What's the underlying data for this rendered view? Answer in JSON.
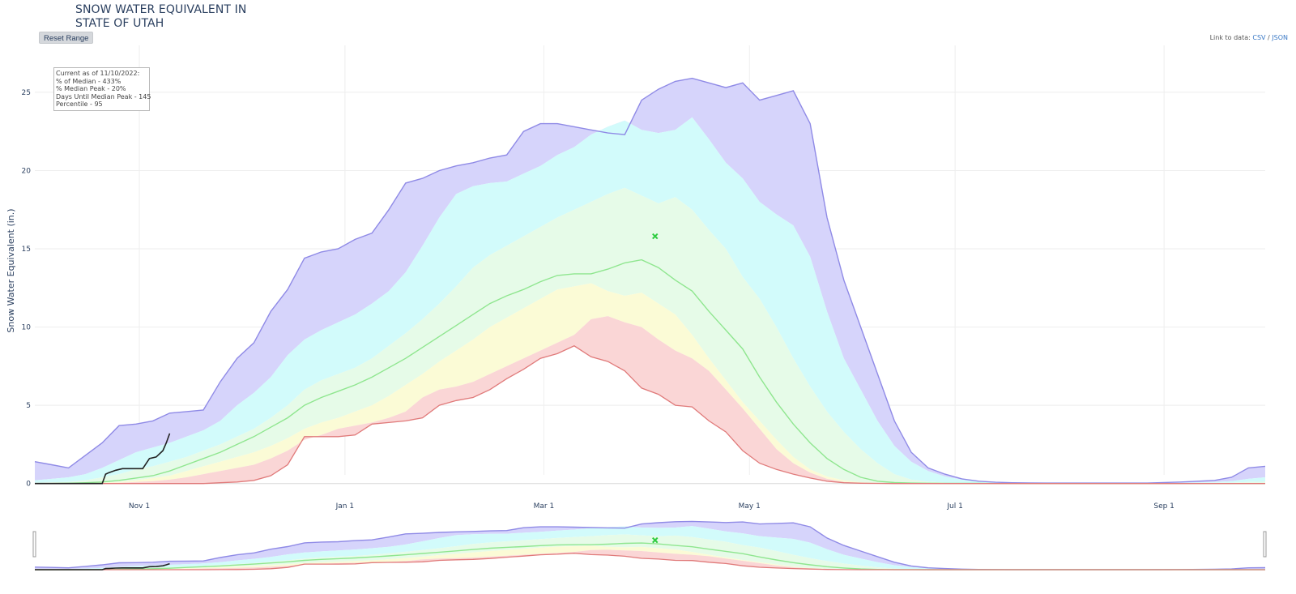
{
  "title": {
    "line1": "SNOW WATER EQUIVALENT IN",
    "line2": "STATE OF UTAH"
  },
  "toolbar": {
    "reset_label": "Reset Range"
  },
  "data_link": {
    "prefix": "Link to data: ",
    "csv": "CSV",
    "separator": " / ",
    "json": "JSON"
  },
  "info_box": {
    "line1": "Current as of 11/10/2022:",
    "line2": "% of Median - 433%",
    "line3": "% Median Peak - 20%",
    "line4": "Days Until Median Peak - 145",
    "line5": "Percentile - 95"
  },
  "colors": {
    "max_fill": "#d6d4fb",
    "max_line": "#8f8ae6",
    "p90_fill": "#d2fbfb",
    "p70_fill": "#e6fbe8",
    "p30_fill": "#fbfbd6",
    "p10_fill": "#fad6d6",
    "median_line": "#8fe68f",
    "min_line": "#e07a7a",
    "current_line": "#222222",
    "peak_marker": "#2ecc40"
  },
  "chart_data": {
    "type": "area",
    "ylabel": "Snow Water Equivalent (in.)",
    "ylim": [
      -1,
      28
    ],
    "yticks": [
      0,
      5,
      10,
      15,
      20,
      25
    ],
    "xrange_days": [
      0,
      365
    ],
    "xticks": [
      {
        "label": "Nov 1",
        "day": 31
      },
      {
        "label": "Jan 1",
        "day": 92
      },
      {
        "label": "Mar 1",
        "day": 151
      },
      {
        "label": "May 1",
        "day": 212
      },
      {
        "label": "Jul 1",
        "day": 273
      },
      {
        "label": "Sep 1",
        "day": 335
      }
    ],
    "x": [
      0,
      5,
      10,
      15,
      20,
      25,
      30,
      35,
      40,
      45,
      50,
      55,
      60,
      65,
      70,
      75,
      80,
      85,
      90,
      95,
      100,
      105,
      110,
      115,
      120,
      125,
      130,
      135,
      140,
      145,
      150,
      155,
      160,
      165,
      170,
      175,
      180,
      185,
      190,
      195,
      200,
      205,
      210,
      215,
      220,
      225,
      230,
      235,
      240,
      245,
      250,
      255,
      260,
      265,
      270,
      275,
      280,
      285,
      290,
      300,
      310,
      320,
      330,
      340,
      350,
      355,
      360,
      365
    ],
    "series": [
      {
        "name": "Max",
        "values": [
          1.4,
          1.2,
          1.0,
          1.8,
          2.6,
          3.7,
          3.8,
          4.0,
          4.5,
          4.6,
          4.7,
          6.5,
          8.0,
          9.0,
          11.0,
          12.4,
          14.4,
          14.8,
          15.0,
          15.6,
          16.0,
          17.5,
          19.2,
          19.5,
          20.0,
          20.3,
          20.5,
          20.8,
          21.0,
          22.5,
          23.0,
          23.0,
          22.8,
          22.6,
          22.4,
          22.3,
          24.5,
          25.2,
          25.7,
          25.9,
          25.6,
          25.3,
          25.6,
          24.5,
          24.8,
          25.1,
          23.0,
          17.0,
          13.0,
          10.0,
          7.0,
          4.0,
          2.0,
          1.0,
          0.6,
          0.3,
          0.15,
          0.08,
          0.05,
          0.03,
          0.03,
          0.03,
          0.03,
          0.1,
          0.2,
          0.4,
          1.0,
          1.1
        ]
      },
      {
        "name": "90%",
        "values": [
          0.2,
          0.3,
          0.4,
          0.6,
          1.0,
          1.5,
          2.0,
          2.3,
          2.6,
          3.0,
          3.4,
          4.0,
          5.0,
          5.8,
          6.8,
          8.2,
          9.2,
          9.8,
          10.3,
          10.8,
          11.5,
          12.3,
          13.5,
          15.2,
          17.0,
          18.5,
          19.0,
          19.2,
          19.3,
          19.8,
          20.3,
          21.0,
          21.5,
          22.3,
          22.8,
          23.2,
          22.6,
          22.4,
          22.6,
          23.4,
          22.0,
          20.5,
          19.5,
          18.0,
          17.2,
          16.5,
          14.5,
          11.0,
          8.0,
          6.0,
          4.0,
          2.4,
          1.4,
          0.8,
          0.45,
          0.25,
          0.12,
          0.06,
          0.04,
          0.03,
          0.03,
          0.03,
          0.03,
          0.05,
          0.1,
          0.15,
          0.3,
          0.4
        ]
      },
      {
        "name": "70%",
        "values": [
          0.05,
          0.08,
          0.1,
          0.2,
          0.4,
          0.6,
          0.9,
          1.1,
          1.4,
          1.7,
          2.1,
          2.5,
          3.0,
          3.5,
          4.2,
          5.0,
          6.0,
          6.6,
          7.0,
          7.4,
          8.0,
          8.8,
          9.6,
          10.5,
          11.5,
          12.6,
          13.8,
          14.6,
          15.2,
          15.8,
          16.4,
          17.0,
          17.5,
          18.0,
          18.5,
          18.9,
          18.4,
          17.9,
          18.3,
          17.5,
          16.2,
          15.0,
          13.2,
          11.8,
          10.0,
          8.0,
          6.2,
          4.6,
          3.3,
          2.2,
          1.3,
          0.6,
          0.25,
          0.12,
          0.06,
          0.04,
          0.03,
          0.02,
          0.02,
          0.02,
          0.02,
          0.02,
          0.02,
          0.03,
          0.05,
          0.06,
          0.1,
          0.12
        ]
      },
      {
        "name": "Median",
        "values": [
          0.0,
          0.0,
          0.02,
          0.05,
          0.1,
          0.2,
          0.35,
          0.5,
          0.8,
          1.2,
          1.6,
          2.0,
          2.5,
          3.0,
          3.6,
          4.2,
          5.0,
          5.5,
          5.9,
          6.3,
          6.8,
          7.4,
          8.0,
          8.7,
          9.4,
          10.1,
          10.8,
          11.5,
          12.0,
          12.4,
          12.9,
          13.3,
          13.4,
          13.4,
          13.7,
          14.1,
          14.3,
          13.8,
          13.0,
          12.3,
          11.0,
          9.8,
          8.6,
          6.8,
          5.2,
          3.8,
          2.6,
          1.6,
          0.9,
          0.4,
          0.15,
          0.06,
          0.03,
          0.02,
          0.01,
          0.01,
          0.01,
          0.0,
          0.0,
          0.0,
          0.0,
          0.0,
          0.0,
          0.0,
          0.0,
          0.0,
          0.0,
          0.0
        ]
      },
      {
        "name": "30%",
        "values": [
          0.0,
          0.0,
          0.01,
          0.03,
          0.06,
          0.1,
          0.2,
          0.35,
          0.5,
          0.8,
          1.1,
          1.4,
          1.7,
          2.0,
          2.4,
          2.9,
          3.5,
          3.9,
          4.2,
          4.6,
          5.0,
          5.6,
          6.3,
          7.0,
          7.8,
          8.5,
          9.2,
          10.0,
          10.6,
          11.2,
          11.8,
          12.4,
          12.6,
          12.8,
          12.3,
          12.0,
          12.2,
          11.5,
          10.8,
          9.5,
          8.0,
          6.6,
          5.2,
          4.0,
          2.8,
          1.7,
          0.9,
          0.45,
          0.2,
          0.08,
          0.04,
          0.02,
          0.01,
          0.0,
          0.0,
          0.0,
          0.0,
          0.0,
          0.0,
          0.0,
          0.0,
          0.0,
          0.0,
          0.0,
          0.0,
          0.0,
          0.0,
          0.0
        ]
      },
      {
        "name": "10%",
        "values": [
          0.0,
          0.0,
          0.0,
          0.01,
          0.02,
          0.05,
          0.1,
          0.15,
          0.25,
          0.4,
          0.6,
          0.8,
          1.0,
          1.2,
          1.6,
          2.1,
          2.8,
          3.1,
          3.5,
          3.7,
          3.9,
          4.2,
          4.6,
          5.5,
          6.0,
          6.2,
          6.5,
          7.0,
          7.5,
          8.0,
          8.5,
          9.0,
          9.5,
          10.5,
          10.7,
          10.3,
          10.0,
          9.2,
          8.5,
          8.0,
          7.2,
          6.0,
          4.8,
          3.5,
          2.2,
          1.3,
          0.7,
          0.3,
          0.1,
          0.04,
          0.02,
          0.01,
          0.0,
          0.0,
          0.0,
          0.0,
          0.0,
          0.0,
          0.0,
          0.0,
          0.0,
          0.0,
          0.0,
          0.0,
          0.0,
          0.0,
          0.0,
          0.0
        ]
      },
      {
        "name": "Min",
        "values": [
          0.0,
          0.0,
          0.0,
          0.0,
          0.0,
          0.0,
          0.0,
          0.0,
          0.0,
          0.0,
          0.0,
          0.05,
          0.1,
          0.2,
          0.5,
          1.2,
          3.0,
          3.0,
          3.0,
          3.1,
          3.8,
          3.9,
          4.0,
          4.2,
          5.0,
          5.3,
          5.5,
          6.0,
          6.7,
          7.3,
          8.0,
          8.3,
          8.8,
          8.1,
          7.8,
          7.2,
          6.1,
          5.7,
          5.0,
          4.9,
          4.0,
          3.3,
          2.1,
          1.3,
          0.9,
          0.6,
          0.35,
          0.15,
          0.05,
          0.02,
          0.01,
          0.0,
          0.0,
          0.0,
          0.0,
          0.0,
          0.0,
          0.0,
          0.0,
          0.0,
          0.0,
          0.0,
          0.0,
          0.0,
          0.0,
          0.0,
          0.0,
          0.0
        ]
      }
    ],
    "current": {
      "name": "Current",
      "x": [
        0,
        10,
        20,
        21,
        22,
        24,
        26,
        28,
        30,
        32,
        34,
        36,
        38,
        39,
        40
      ],
      "values": [
        0.0,
        0.0,
        0.0,
        0.6,
        0.7,
        0.85,
        0.95,
        0.95,
        0.95,
        0.95,
        1.6,
        1.7,
        2.1,
        2.6,
        3.2
      ]
    },
    "median_peak": {
      "name": "Median Peak",
      "x": 184,
      "y": 15.8
    }
  }
}
